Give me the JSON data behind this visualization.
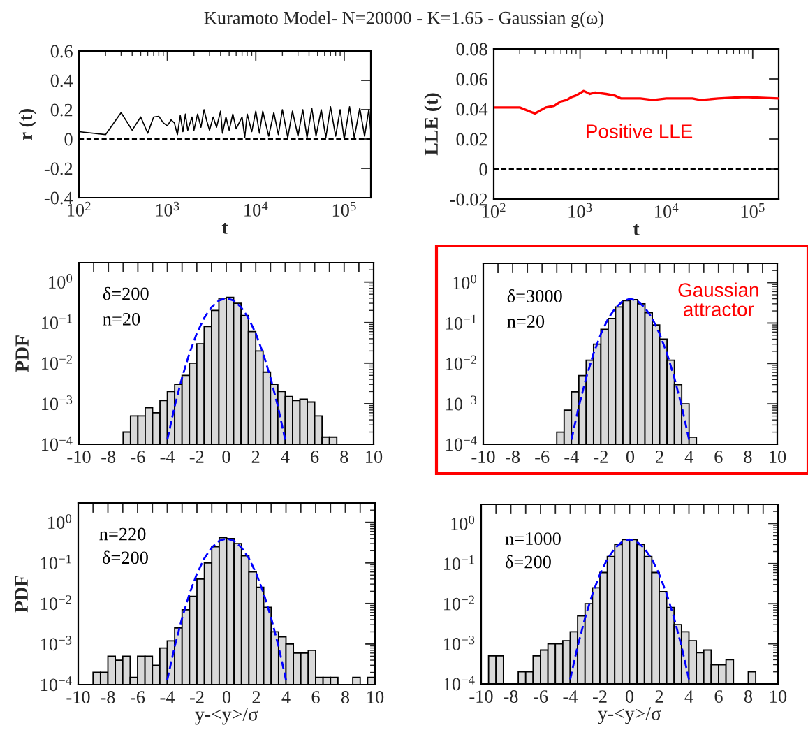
{
  "chart_data": [
    {
      "type": "line",
      "title": "Kuramoto Model- N=20000 - K=1.65 - Gaussian g(ω)",
      "xlabel": "t",
      "ylabel": "r (t)",
      "log": "x",
      "xlim": [
        100,
        200000
      ],
      "xticks": [
        {
          "value": 100,
          "label": "10$^{2}$"
        },
        {
          "value": 1000,
          "label": "10$^{3}$"
        },
        {
          "value": 10000,
          "label": "10$^{4}$"
        },
        {
          "value": 100000,
          "label": "10$^{5}$"
        }
      ],
      "ylim": [
        -0.4,
        0.6
      ],
      "yticks": [
        -0.4,
        -0.2,
        0,
        0.2,
        0.4,
        0.6
      ],
      "ref_lines": [
        {
          "axis": "y",
          "value": 0,
          "color": "#000000",
          "line_style": "dashed"
        }
      ],
      "series": [
        {
          "color": "#000000",
          "x": [
            100,
            200,
            300,
            400,
            500,
            600,
            700,
            800,
            900,
            1000,
            1100,
            1200,
            1300,
            1400,
            1500,
            1600,
            1700,
            1900,
            2000,
            2200,
            2400,
            2600,
            2800,
            3000,
            3300,
            3600,
            4000,
            4200,
            4600,
            5000,
            5500,
            6000,
            7000,
            7500,
            8000,
            9000,
            10000,
            11000,
            12000,
            14000,
            16000,
            18000,
            20000,
            23000,
            26000,
            30000,
            34000,
            38000,
            43000,
            48000,
            55000,
            62000,
            70000,
            80000,
            90000,
            100000,
            115000,
            130000,
            150000,
            170000,
            190000,
            200000
          ],
          "values": [
            0.05,
            0.03,
            0.18,
            0.06,
            0.15,
            0.04,
            0.15,
            0.155,
            0.11,
            0.09,
            0.13,
            0.11,
            0.03,
            0.16,
            0.05,
            0.17,
            0.06,
            0.15,
            0.06,
            0.17,
            0.08,
            0.2,
            0.12,
            0.06,
            0.15,
            0.08,
            0.19,
            0.04,
            0.15,
            0.06,
            0.17,
            0.07,
            0.15,
            0.01,
            0.17,
            0.05,
            0.19,
            0.04,
            0.19,
            0.02,
            0.18,
            0.03,
            0.2,
            0.01,
            0.19,
            0.02,
            0.2,
            0.01,
            0.21,
            0.02,
            0.2,
            0.01,
            0.22,
            0.02,
            0.2,
            0.0,
            0.22,
            0.01,
            0.21,
            0.02,
            0.2,
            0.05
          ]
        }
      ]
    },
    {
      "type": "line",
      "xlabel": "t",
      "ylabel": "LLE (t)",
      "log": "x",
      "xlim": [
        100,
        200000
      ],
      "xticks": [
        {
          "value": 100,
          "label": "10$^{2}$"
        },
        {
          "value": 1000,
          "label": "10$^{3}$"
        },
        {
          "value": 10000,
          "label": "10$^{4}$"
        },
        {
          "value": 100000,
          "label": "10$^{5}$"
        }
      ],
      "ylim": [
        -0.02,
        0.08
      ],
      "yticks": [
        -0.02,
        0,
        0.02,
        0.04,
        0.06,
        0.08
      ],
      "annotations": [
        "Positive LLE"
      ],
      "ref_lines": [
        {
          "axis": "y",
          "value": 0,
          "color": "#000000",
          "line_style": "dashed"
        }
      ],
      "series": [
        {
          "color": "#ff0000",
          "x": [
            100,
            200,
            300,
            400,
            500,
            600,
            700,
            800,
            900,
            1100,
            1200,
            1300,
            1500,
            2000,
            2500,
            3000,
            5000,
            7000,
            10000,
            20000,
            25000,
            40000,
            80000,
            200000
          ],
          "values": [
            0.041,
            0.041,
            0.037,
            0.041,
            0.042,
            0.045,
            0.046,
            0.048,
            0.049,
            0.052,
            0.051,
            0.05,
            0.051,
            0.05,
            0.049,
            0.047,
            0.047,
            0.046,
            0.047,
            0.047,
            0.046,
            0.047,
            0.048,
            0.047
          ]
        }
      ]
    },
    {
      "type": "histogram",
      "ylabel": "PDF",
      "log": "y",
      "xlim": [
        -10,
        10
      ],
      "xticks": [
        -10,
        {
          "value": -9,
          "label": null
        },
        -8,
        {
          "value": -7,
          "label": null
        },
        -6,
        {
          "value": -5,
          "label": null
        },
        -4,
        {
          "value": -3,
          "label": null
        },
        -2,
        {
          "value": -1,
          "label": null
        },
        0,
        {
          "value": 1,
          "label": null
        },
        2,
        {
          "value": 3,
          "label": null
        },
        4,
        {
          "value": 5,
          "label": null
        },
        6,
        {
          "value": 7,
          "label": null
        },
        8,
        {
          "value": 9,
          "label": null
        },
        10
      ],
      "ylim": [
        0.0001,
        3
      ],
      "yticks": [
        {
          "value": 0.0001,
          "label": "10$^{−4}$"
        },
        {
          "value": 0.001,
          "label": "10$^{−3}$"
        },
        {
          "value": 0.01,
          "label": "10$^{−2}$"
        },
        {
          "value": 0.1,
          "label": "10$^{−1}$"
        },
        {
          "value": 1,
          "label": "10$^{0}$"
        }
      ],
      "annotations": [
        "δ=200",
        "n=20"
      ],
      "bins": [
        -10,
        -9.5,
        -9,
        -8.5,
        -8,
        -7.5,
        -7,
        -6.5,
        -6,
        -5.5,
        -5,
        -4.5,
        -4,
        -3.5,
        -3,
        -2.5,
        -2,
        -1.5,
        -1,
        -0.5,
        0,
        0.5,
        1,
        1.5,
        2,
        2.5,
        3,
        3.5,
        4,
        4.5,
        5,
        5.5,
        6,
        6.5,
        7,
        7.5,
        8,
        8.5,
        9,
        9.5,
        10
      ],
      "series": [
        {
          "type": "histogram",
          "color": "#d9d9d9",
          "values": [
            null,
            null,
            null,
            null,
            null,
            null,
            0.0002,
            0.0005,
            0.0005,
            0.0008,
            0.0006,
            0.0012,
            0.002,
            0.003,
            0.005,
            0.01,
            0.03,
            0.08,
            0.2,
            0.4,
            0.42,
            0.3,
            0.15,
            0.06,
            0.02,
            0.006,
            0.003,
            0.002,
            0.0015,
            0.0012,
            0.0013,
            0.0011,
            0.0005,
            0.00015,
            0.00015,
            null,
            null,
            null,
            null,
            null
          ]
        },
        {
          "type": "line",
          "color": "#0000ff",
          "line_style": "dashed",
          "x": [
            -4,
            -3.5,
            -3,
            -2.5,
            -2,
            -1.5,
            -1,
            -0.5,
            0,
            0.5,
            1,
            1.5,
            2,
            2.5,
            3,
            3.5,
            4
          ],
          "values": [
            0.00013,
            0.00087,
            0.0044,
            0.0175,
            0.054,
            0.13,
            0.24,
            0.35,
            0.4,
            0.35,
            0.24,
            0.13,
            0.054,
            0.0175,
            0.0044,
            0.00087,
            0.00013
          ]
        }
      ]
    },
    {
      "type": "histogram",
      "log": "y",
      "xlim": [
        -10,
        10
      ],
      "xticks": [
        -10,
        {
          "value": -9,
          "label": null
        },
        -8,
        {
          "value": -7,
          "label": null
        },
        -6,
        {
          "value": -5,
          "label": null
        },
        -4,
        {
          "value": -3,
          "label": null
        },
        -2,
        {
          "value": -1,
          "label": null
        },
        0,
        {
          "value": 1,
          "label": null
        },
        2,
        {
          "value": 3,
          "label": null
        },
        4,
        {
          "value": 5,
          "label": null
        },
        6,
        {
          "value": 7,
          "label": null
        },
        8,
        {
          "value": 9,
          "label": null
        },
        10
      ],
      "ylim": [
        0.0001,
        3
      ],
      "yticks": [
        {
          "value": 0.0001,
          "label": "10$^{−4}$"
        },
        {
          "value": 0.001,
          "label": "10$^{−3}$"
        },
        {
          "value": 0.01,
          "label": "10$^{−2}$"
        },
        {
          "value": 0.1,
          "label": "10$^{−1}$"
        },
        {
          "value": 1,
          "label": "10$^{0}$"
        }
      ],
      "annotations": [
        "δ=3000",
        "n=20",
        "Gaussian\nattractor"
      ],
      "bins": [
        -10,
        -9.5,
        -9,
        -8.5,
        -8,
        -7.5,
        -7,
        -6.5,
        -6,
        -5.5,
        -5,
        -4.5,
        -4,
        -3.5,
        -3,
        -2.5,
        -2,
        -1.5,
        -1,
        -0.5,
        0,
        0.5,
        1,
        1.5,
        2,
        2.5,
        3,
        3.5,
        4,
        4.5,
        5,
        5.5,
        6,
        6.5,
        7,
        7.5,
        8,
        8.5,
        9,
        9.5,
        10
      ],
      "series": [
        {
          "type": "histogram",
          "color": "#d9d9d9",
          "values": [
            null,
            null,
            null,
            null,
            null,
            null,
            null,
            null,
            null,
            null,
            0.0002,
            0.0007,
            0.002,
            0.005,
            0.012,
            0.03,
            0.07,
            0.13,
            0.25,
            0.36,
            0.38,
            0.3,
            0.18,
            0.09,
            0.04,
            0.012,
            0.003,
            0.001,
            0.00015,
            null,
            null,
            null,
            null,
            null,
            null,
            null,
            null,
            null,
            null,
            null
          ]
        },
        {
          "type": "line",
          "color": "#0000ff",
          "line_style": "dashed",
          "x": [
            -4,
            -3.5,
            -3,
            -2.5,
            -2,
            -1.5,
            -1,
            -0.5,
            0,
            0.5,
            1,
            1.5,
            2,
            2.5,
            3,
            3.5,
            4
          ],
          "values": [
            0.00013,
            0.00087,
            0.0044,
            0.0175,
            0.054,
            0.13,
            0.24,
            0.35,
            0.4,
            0.35,
            0.24,
            0.13,
            0.054,
            0.0175,
            0.0044,
            0.00087,
            0.00013
          ]
        }
      ]
    },
    {
      "type": "histogram",
      "xlabel": "y-<y>/σ",
      "ylabel": "PDF",
      "log": "y",
      "xlim": [
        -10,
        10
      ],
      "xticks": [
        -10,
        {
          "value": -9,
          "label": null
        },
        -8,
        {
          "value": -7,
          "label": null
        },
        -6,
        {
          "value": -5,
          "label": null
        },
        -4,
        {
          "value": -3,
          "label": null
        },
        -2,
        {
          "value": -1,
          "label": null
        },
        0,
        {
          "value": 1,
          "label": null
        },
        2,
        {
          "value": 3,
          "label": null
        },
        4,
        {
          "value": 5,
          "label": null
        },
        6,
        {
          "value": 7,
          "label": null
        },
        8,
        {
          "value": 9,
          "label": null
        },
        10
      ],
      "ylim": [
        0.0001,
        3
      ],
      "yticks": [
        {
          "value": 0.0001,
          "label": "10$^{−4}$"
        },
        {
          "value": 0.001,
          "label": "10$^{−3}$"
        },
        {
          "value": 0.01,
          "label": "10$^{−2}$"
        },
        {
          "value": 0.1,
          "label": "10$^{−1}$"
        },
        {
          "value": 1,
          "label": "10$^{0}$"
        }
      ],
      "annotations": [
        "n=220",
        "δ=200"
      ],
      "bins": [
        -10,
        -9.5,
        -9,
        -8.5,
        -8,
        -7.5,
        -7,
        -6.5,
        -6,
        -5.5,
        -5,
        -4.5,
        -4,
        -3.5,
        -3,
        -2.5,
        -2,
        -1.5,
        -1,
        -0.5,
        0,
        0.5,
        1,
        1.5,
        2,
        2.5,
        3,
        3.5,
        4,
        4.5,
        5,
        5.5,
        6,
        6.5,
        7,
        7.5,
        8,
        8.5,
        9,
        9.5,
        10
      ],
      "series": [
        {
          "type": "histogram",
          "color": "#d9d9d9",
          "values": [
            null,
            null,
            0.0002,
            0.0002,
            0.0005,
            0.0004,
            0.0005,
            0.00015,
            0.0005,
            0.0005,
            0.0003,
            0.0008,
            0.0012,
            0.0025,
            0.007,
            0.015,
            0.04,
            0.1,
            0.25,
            0.42,
            0.4,
            0.3,
            0.15,
            0.06,
            0.025,
            0.008,
            0.002,
            0.0015,
            0.001,
            0.0006,
            0.0006,
            0.0007,
            0.00015,
            0.00015,
            0.00015,
            null,
            null,
            0.00015,
            null,
            0.00015
          ]
        },
        {
          "type": "line",
          "color": "#0000ff",
          "line_style": "dashed",
          "x": [
            -4,
            -3.5,
            -3,
            -2.5,
            -2,
            -1.5,
            -1,
            -0.5,
            0,
            0.5,
            1,
            1.5,
            2,
            2.5,
            3,
            3.5,
            4
          ],
          "values": [
            0.00013,
            0.00087,
            0.0044,
            0.0175,
            0.054,
            0.13,
            0.24,
            0.35,
            0.4,
            0.35,
            0.24,
            0.13,
            0.054,
            0.0175,
            0.0044,
            0.00087,
            0.00013
          ]
        }
      ]
    },
    {
      "type": "histogram",
      "xlabel": "y-<y>/σ",
      "log": "y",
      "xlim": [
        -10,
        10
      ],
      "xticks": [
        -10,
        {
          "value": -9,
          "label": null
        },
        -8,
        {
          "value": -7,
          "label": null
        },
        -6,
        {
          "value": -5,
          "label": null
        },
        -4,
        {
          "value": -3,
          "label": null
        },
        -2,
        {
          "value": -1,
          "label": null
        },
        0,
        {
          "value": 1,
          "label": null
        },
        2,
        {
          "value": 3,
          "label": null
        },
        4,
        {
          "value": 5,
          "label": null
        },
        6,
        {
          "value": 7,
          "label": null
        },
        8,
        {
          "value": 9,
          "label": null
        },
        10
      ],
      "ylim": [
        0.0001,
        3
      ],
      "yticks": [
        {
          "value": 0.0001,
          "label": "10$^{−4}$"
        },
        {
          "value": 0.001,
          "label": "10$^{−3}$"
        },
        {
          "value": 0.01,
          "label": "10$^{−2}$"
        },
        {
          "value": 0.1,
          "label": "10$^{−1}$"
        },
        {
          "value": 1,
          "label": "10$^{0}$"
        }
      ],
      "annotations": [
        "n=1000",
        "δ=200"
      ],
      "bins": [
        -10,
        -9.5,
        -9,
        -8.5,
        -8,
        -7.5,
        -7,
        -6.5,
        -6,
        -5.5,
        -5,
        -4.5,
        -4,
        -3.5,
        -3,
        -2.5,
        -2,
        -1.5,
        -1,
        -0.5,
        0,
        0.5,
        1,
        1.5,
        2,
        2.5,
        3,
        3.5,
        4,
        4.5,
        5,
        5.5,
        6,
        6.5,
        7,
        7.5,
        8,
        8.5,
        9,
        9.5,
        10
      ],
      "series": [
        {
          "type": "histogram",
          "color": "#d9d9d9",
          "values": [
            null,
            0.0005,
            0.0005,
            null,
            null,
            0.0002,
            0.0002,
            0.0005,
            0.0007,
            0.001,
            0.001,
            0.0012,
            0.002,
            0.005,
            0.01,
            0.025,
            0.06,
            0.15,
            0.3,
            0.4,
            0.4,
            0.3,
            0.15,
            0.06,
            0.02,
            0.008,
            0.003,
            0.002,
            0.0012,
            0.0006,
            0.0007,
            0.0003,
            0.0003,
            0.0004,
            null,
            null,
            0.0002,
            null,
            null,
            null
          ]
        },
        {
          "type": "line",
          "color": "#0000ff",
          "line_style": "dashed",
          "x": [
            -4,
            -3.5,
            -3,
            -2.5,
            -2,
            -1.5,
            -1,
            -0.5,
            0,
            0.5,
            1,
            1.5,
            2,
            2.5,
            3,
            3.5,
            4
          ],
          "values": [
            0.00013,
            0.00087,
            0.0044,
            0.0175,
            0.054,
            0.13,
            0.24,
            0.35,
            0.4,
            0.35,
            0.24,
            0.13,
            0.054,
            0.0175,
            0.0044,
            0.00087,
            0.00013
          ]
        }
      ]
    }
  ]
}
